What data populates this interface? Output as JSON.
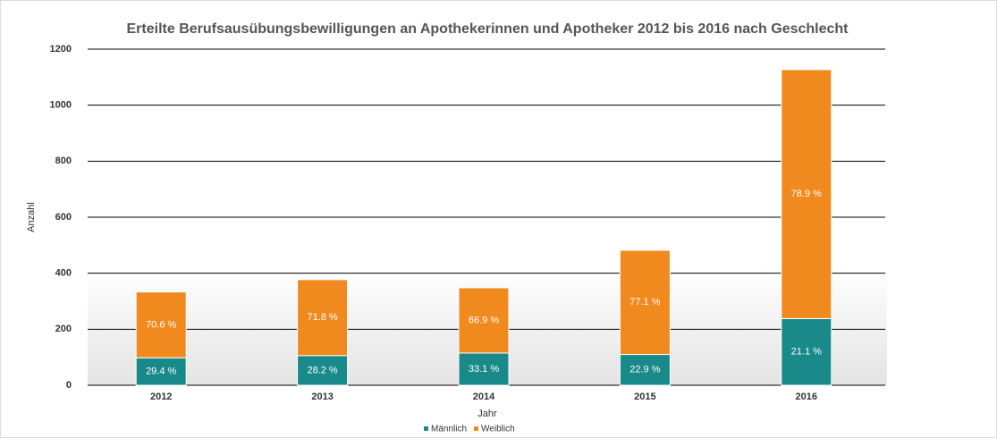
{
  "chart_data": {
    "type": "stacked_bar",
    "title": "Erteilte Berufsausübungsbewilligungen an Apothekerinnen und Apotheker 2012 bis 2016 nach Geschlecht",
    "x_label": "Jahr",
    "y_label": "Anzahl",
    "categories": [
      "2012",
      "2013",
      "2014",
      "2015",
      "2016"
    ],
    "series": [
      {
        "name": "Männlich",
        "color": "#19898a",
        "values": [
          98,
          106,
          115,
          110,
          238
        ],
        "share_labels": [
          "29.4 %",
          "28.2 %",
          "33.1 %",
          "22.9 %",
          "21.1 %"
        ]
      },
      {
        "name": "Weiblich",
        "color": "#f08a1f",
        "values": [
          235,
          271,
          233,
          372,
          889
        ],
        "share_labels": [
          "70.6 %",
          "71.8 %",
          "66.9 %",
          "77.1 %",
          "78.9 %"
        ]
      }
    ],
    "ylim": [
      0,
      1200
    ],
    "yticks": [
      0,
      200,
      400,
      600,
      800,
      1000,
      1200
    ],
    "grid": true,
    "legend": "bottom"
  }
}
